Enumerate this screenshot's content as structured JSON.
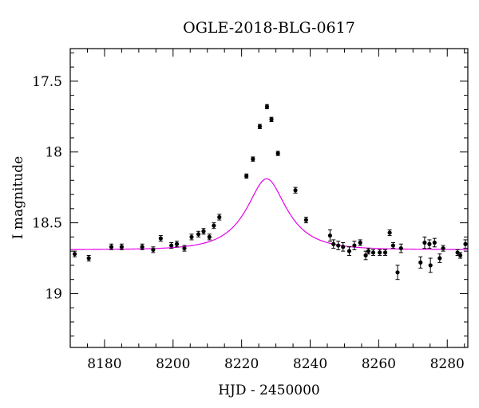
{
  "chart_data": {
    "type": "scatter",
    "title": "OGLE-2018-BLG-0617",
    "xlabel": "HJD - 2450000",
    "ylabel": "I magnitude",
    "xlim": [
      8170,
      8286
    ],
    "ylim": [
      19.38,
      17.27
    ],
    "y_inverted": true,
    "xticks": [
      8180,
      8200,
      8220,
      8240,
      8260,
      8280
    ],
    "yticks": [
      17.5,
      18,
      18.5,
      19
    ],
    "ytick_labels": [
      "17.5",
      "18",
      "18.5",
      "19"
    ],
    "grid": false,
    "colors": {
      "points": "#000000",
      "model": "#e600e6"
    },
    "series": [
      {
        "kind": "points_with_errorbars",
        "x": [
          8171.3,
          8175.4,
          8182.0,
          8185.0,
          8191.0,
          8194.2,
          8196.4,
          8199.5,
          8201.1,
          8203.3,
          8205.4,
          8207.4,
          8208.9,
          8210.6,
          8211.9,
          8213.5,
          8221.4,
          8223.3,
          8225.3,
          8227.4,
          8228.7,
          8230.6,
          8235.7,
          8238.8,
          8245.8,
          8246.8,
          8248.2,
          8249.6,
          8251.4,
          8252.9,
          8254.6,
          8256.2,
          8257.0,
          8258.4,
          8260.3,
          8261.9,
          8263.2,
          8264.2,
          8265.5,
          8266.5,
          8272.2,
          8273.4,
          8274.8,
          8275.1,
          8276.3,
          8277.8,
          8278.8,
          8283.0,
          8283.8,
          8285.3
        ],
        "y": [
          18.72,
          18.75,
          18.67,
          18.67,
          18.67,
          18.69,
          18.61,
          18.66,
          18.65,
          18.68,
          18.6,
          18.58,
          18.56,
          18.6,
          18.52,
          18.46,
          18.17,
          18.05,
          17.82,
          17.68,
          17.77,
          18.01,
          18.27,
          18.48,
          18.59,
          18.65,
          18.66,
          18.67,
          18.7,
          18.66,
          18.64,
          18.73,
          18.7,
          18.71,
          18.71,
          18.71,
          18.57,
          18.66,
          18.85,
          18.68,
          18.78,
          18.64,
          18.65,
          18.8,
          18.64,
          18.75,
          18.68,
          18.71,
          18.73,
          18.65
        ],
        "err": [
          0.02,
          0.02,
          0.02,
          0.02,
          0.02,
          0.02,
          0.02,
          0.02,
          0.02,
          0.02,
          0.02,
          0.02,
          0.02,
          0.02,
          0.02,
          0.02,
          0.015,
          0.015,
          0.015,
          0.015,
          0.015,
          0.015,
          0.02,
          0.02,
          0.04,
          0.03,
          0.03,
          0.03,
          0.03,
          0.03,
          0.02,
          0.03,
          0.02,
          0.02,
          0.02,
          0.02,
          0.02,
          0.02,
          0.05,
          0.03,
          0.04,
          0.04,
          0.03,
          0.05,
          0.03,
          0.03,
          0.02,
          0.02,
          0.02,
          0.03
        ]
      },
      {
        "kind": "model_curve",
        "model": "paczynski",
        "params": {
          "t0": 8227.3,
          "u0": 0.49,
          "tE": 11.0,
          "fs": 0.48,
          "Ibase": 18.69
        },
        "x_range": [
          8170,
          8286
        ]
      }
    ]
  }
}
